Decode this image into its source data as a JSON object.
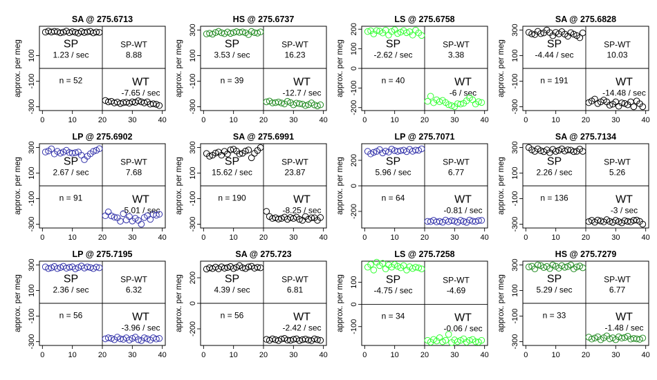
{
  "ylabel": "approx. per meg",
  "x_ticks": [
    0,
    10,
    20,
    30,
    40
  ],
  "chart_data": [
    {
      "type": "scatter",
      "title": "SA @ 275.6713",
      "color": "#000000",
      "ylim": [
        -330,
        330
      ],
      "yticks": [
        -300,
        -100,
        100
      ],
      "sp_rate": "1.23 / sec",
      "diff": "8.88",
      "n": "n = 52",
      "wt_rate": "-7.65 / sec",
      "x": [
        1,
        2,
        3,
        4,
        5,
        6,
        7,
        8,
        9,
        10,
        11,
        12,
        13,
        14,
        15,
        16,
        17,
        18,
        19,
        21,
        22,
        23,
        24,
        25,
        26,
        27,
        28,
        29,
        30,
        31,
        32,
        33,
        34,
        35,
        36,
        37,
        38,
        39
      ],
      "y": [
        284,
        292,
        285,
        290,
        287,
        279,
        284,
        292,
        280,
        288,
        283,
        276,
        289,
        281,
        286,
        290,
        278,
        285,
        282,
        -251,
        -262,
        -258,
        -270,
        -264,
        -275,
        -268,
        -265,
        -272,
        -262,
        -266,
        -254,
        -262,
        -270,
        -262,
        -280,
        -277,
        -281,
        -291
      ]
    },
    {
      "type": "scatter",
      "title": "HS @ 275.6737",
      "color": "#228B22",
      "ylim": [
        -330,
        330
      ],
      "yticks": [
        -300,
        -100,
        100,
        300
      ],
      "sp_rate": "3.53 / sec",
      "diff": "16.23",
      "n": "n = 39",
      "wt_rate": "-12.7 / sec",
      "x": [
        1,
        2,
        3,
        4,
        5,
        6,
        7,
        8,
        9,
        10,
        11,
        12,
        13,
        14,
        15,
        16,
        17,
        18,
        19,
        21,
        22,
        23,
        24,
        25,
        26,
        27,
        28,
        29,
        30,
        31,
        32,
        33,
        34,
        35,
        36,
        37,
        38,
        39
      ],
      "y": [
        270,
        275,
        268,
        281,
        290,
        279,
        272,
        285,
        274,
        281,
        288,
        282,
        286,
        279,
        265,
        289,
        280,
        276,
        286,
        -262,
        -256,
        -270,
        -268,
        -263,
        -271,
        -278,
        -258,
        -268,
        -285,
        -272,
        -276,
        -280,
        -291,
        -284,
        -270,
        -286,
        -294,
        -285
      ]
    },
    {
      "type": "scatter",
      "title": "LS @ 275.6758",
      "color": "#33FF33",
      "ylim": [
        -215,
        215
      ],
      "yticks": [
        -200,
        -100,
        0,
        100,
        200
      ],
      "sp_rate": "-2.62 / sec",
      "diff": "3.38",
      "n": "n = 40",
      "wt_rate": "-6 / sec",
      "x": [
        1,
        2,
        3,
        4,
        5,
        6,
        7,
        8,
        9,
        10,
        11,
        12,
        13,
        14,
        15,
        16,
        17,
        18,
        19,
        21,
        22,
        23,
        24,
        25,
        26,
        27,
        28,
        29,
        30,
        31,
        32,
        33,
        34,
        35,
        36,
        37,
        38,
        39
      ],
      "y": [
        188,
        192,
        176,
        193,
        190,
        181,
        195,
        170,
        188,
        197,
        178,
        185,
        193,
        182,
        187,
        170,
        195,
        181,
        168,
        -168,
        -142,
        -175,
        -160,
        -170,
        -163,
        -174,
        -185,
        -190,
        -195,
        -180,
        -182,
        -178,
        -165,
        -150,
        -160,
        -182,
        -170,
        -174
      ]
    },
    {
      "type": "scatter",
      "title": "SA @ 275.6828",
      "color": "#000000",
      "ylim": [
        -330,
        330
      ],
      "yticks": [
        -300,
        -100,
        100,
        300
      ],
      "sp_rate": "-4.44 / sec",
      "diff": "10.03",
      "n": "n = 191",
      "wt_rate": "-14.48 / sec",
      "x": [
        1,
        2,
        3,
        4,
        5,
        6,
        7,
        8,
        9,
        10,
        11,
        12,
        13,
        14,
        15,
        16,
        17,
        18,
        19,
        21,
        22,
        23,
        24,
        25,
        26,
        27,
        28,
        29,
        30,
        31,
        32,
        33,
        34,
        35,
        36,
        37,
        38,
        39
      ],
      "y": [
        282,
        270,
        265,
        290,
        272,
        278,
        300,
        280,
        256,
        282,
        270,
        288,
        268,
        252,
        280,
        268,
        257,
        240,
        278,
        -268,
        -255,
        -240,
        -275,
        -262,
        -248,
        -262,
        -288,
        -280,
        -262,
        -296,
        -270,
        -275,
        -285,
        -262,
        -300,
        -255,
        -277,
        -300
      ]
    },
    {
      "type": "scatter",
      "title": "LP @ 275.6902",
      "color": "#3333AA",
      "ylim": [
        -330,
        330
      ],
      "yticks": [
        -300,
        -100,
        100,
        300
      ],
      "sp_rate": "2.67 / sec",
      "diff": "7.68",
      "n": "n = 91",
      "wt_rate": "-5.01 / sec",
      "x": [
        1,
        2,
        3,
        4,
        5,
        6,
        7,
        8,
        9,
        10,
        11,
        12,
        13,
        14,
        15,
        16,
        17,
        18,
        19,
        21,
        22,
        23,
        24,
        25,
        26,
        27,
        28,
        29,
        30,
        31,
        32,
        33,
        34,
        35,
        36,
        37,
        38,
        39
      ],
      "y": [
        265,
        273,
        290,
        250,
        270,
        256,
        265,
        278,
        261,
        256,
        260,
        265,
        240,
        205,
        232,
        251,
        270,
        278,
        291,
        -234,
        -204,
        -235,
        -245,
        -250,
        -277,
        -218,
        -267,
        -240,
        -275,
        -254,
        -270,
        -300,
        -248,
        -234,
        -262,
        -224,
        -230,
        -222
      ]
    },
    {
      "type": "scatter",
      "title": "SA @ 275.6991",
      "color": "#000000",
      "ylim": [
        -330,
        330
      ],
      "yticks": [
        -300,
        -100,
        100,
        300
      ],
      "sp_rate": "15.62 / sec",
      "diff": "23.87",
      "n": "n = 190",
      "wt_rate": "-8.25 / sec",
      "x": [
        1,
        2,
        3,
        4,
        5,
        6,
        7,
        8,
        9,
        10,
        11,
        12,
        13,
        14,
        15,
        16,
        17,
        18,
        19,
        21,
        22,
        23,
        24,
        25,
        26,
        27,
        28,
        29,
        30,
        31,
        32,
        33,
        34,
        35,
        36,
        37,
        38,
        39
      ],
      "y": [
        253,
        232,
        240,
        257,
        264,
        240,
        270,
        250,
        282,
        287,
        272,
        250,
        255,
        272,
        281,
        220,
        255,
        277,
        300,
        -200,
        -240,
        -255,
        -250,
        -260,
        -255,
        -245,
        -262,
        -248,
        -255,
        -245,
        -262,
        -270,
        -240,
        -262,
        -250,
        -250,
        -270,
        -248
      ]
    },
    {
      "type": "scatter",
      "title": "LP @ 275.7071",
      "color": "#3333AA",
      "ylim": [
        -330,
        330
      ],
      "yticks": [
        -200,
        0,
        200
      ],
      "sp_rate": "5.96 / sec",
      "diff": "6.77",
      "n": "n = 64",
      "wt_rate": "-0.81 / sec",
      "x": [
        1,
        2,
        3,
        4,
        5,
        6,
        7,
        8,
        9,
        10,
        11,
        12,
        13,
        14,
        15,
        16,
        17,
        18,
        19,
        21,
        22,
        23,
        24,
        25,
        26,
        27,
        28,
        29,
        30,
        31,
        32,
        33,
        34,
        35,
        36,
        37,
        38,
        39
      ],
      "y": [
        270,
        250,
        262,
        270,
        284,
        258,
        272,
        265,
        288,
        276,
        270,
        275,
        280,
        268,
        286,
        271,
        280,
        278,
        290,
        -278,
        -280,
        -270,
        -282,
        -278,
        -285,
        -268,
        -280,
        -272,
        -276,
        -285,
        -270,
        -278,
        -286,
        -268,
        -276,
        -280,
        -272,
        -270
      ]
    },
    {
      "type": "scatter",
      "title": "SA @ 275.7134",
      "color": "#000000",
      "ylim": [
        -330,
        330
      ],
      "yticks": [
        -300,
        -100,
        100,
        300
      ],
      "sp_rate": "2.26 / sec",
      "diff": "5.26",
      "n": "n = 136",
      "wt_rate": "-3 / sec",
      "x": [
        1,
        2,
        3,
        4,
        5,
        6,
        7,
        8,
        9,
        10,
        11,
        12,
        13,
        14,
        15,
        16,
        17,
        18,
        19,
        21,
        22,
        23,
        24,
        25,
        26,
        27,
        28,
        29,
        30,
        31,
        32,
        33,
        34,
        35,
        36,
        37,
        38,
        39
      ],
      "y": [
        300,
        282,
        270,
        290,
        275,
        268,
        282,
        260,
        286,
        270,
        278,
        290,
        272,
        282,
        280,
        268,
        270,
        288,
        270,
        -280,
        -270,
        -285,
        -268,
        -275,
        -282,
        -265,
        -278,
        -286,
        -270,
        -280,
        -290,
        -272,
        -278,
        -282,
        -270,
        -268,
        -278,
        -300
      ]
    },
    {
      "type": "scatter",
      "title": "LP @ 275.7195",
      "color": "#3333AA",
      "ylim": [
        -330,
        330
      ],
      "yticks": [
        -300,
        -100,
        100,
        300
      ],
      "sp_rate": "2.36 / sec",
      "diff": "6.32",
      "n": "n = 56",
      "wt_rate": "-3.96 / sec",
      "x": [
        1,
        2,
        3,
        4,
        5,
        6,
        7,
        8,
        9,
        10,
        11,
        12,
        13,
        14,
        15,
        16,
        17,
        18,
        19,
        21,
        22,
        23,
        24,
        25,
        26,
        27,
        28,
        29,
        30,
        31,
        32,
        33,
        34,
        35,
        36,
        37,
        38,
        39
      ],
      "y": [
        285,
        272,
        278,
        288,
        272,
        280,
        290,
        275,
        282,
        286,
        270,
        280,
        292,
        276,
        285,
        280,
        272,
        284,
        278,
        -278,
        -270,
        -275,
        -285,
        -265,
        -278,
        -282,
        -270,
        -288,
        -275,
        -265,
        -285,
        -292,
        -270,
        -278,
        -288,
        -270,
        -280,
        -275
      ]
    },
    {
      "type": "scatter",
      "title": "SA @ 275.723",
      "color": "#000000",
      "ylim": [
        -330,
        330
      ],
      "yticks": [
        -200,
        0,
        200
      ],
      "sp_rate": "4.39 / sec",
      "diff": "6.81",
      "n": "n = 56",
      "wt_rate": "-2.42 / sec",
      "x": [
        1,
        2,
        3,
        4,
        5,
        6,
        7,
        8,
        9,
        10,
        11,
        12,
        13,
        14,
        15,
        16,
        17,
        18,
        19,
        21,
        22,
        23,
        24,
        25,
        26,
        27,
        28,
        29,
        30,
        31,
        32,
        33,
        34,
        35,
        36,
        37,
        38,
        39
      ],
      "y": [
        268,
        278,
        272,
        284,
        270,
        286,
        275,
        280,
        288,
        272,
        282,
        295,
        278,
        272,
        285,
        290,
        275,
        282,
        278,
        -282,
        -290,
        -278,
        -285,
        -292,
        -280,
        -275,
        -288,
        -290,
        -282,
        -278,
        -292,
        -285,
        -280,
        -288,
        -292,
        -278,
        -285,
        -290
      ]
    },
    {
      "type": "scatter",
      "title": "LS @ 275.7258",
      "color": "#33FF33",
      "ylim": [
        -185,
        195
      ],
      "yticks": [
        -100,
        0,
        100
      ],
      "sp_rate": "-4.75 / sec",
      "diff": "-4.69",
      "n": "n = 34",
      "wt_rate": "-0.06 / sec",
      "x": [
        1,
        2,
        3,
        4,
        5,
        6,
        7,
        8,
        9,
        10,
        11,
        12,
        13,
        14,
        15,
        16,
        17,
        18,
        19,
        21,
        22,
        23,
        24,
        25,
        26,
        27,
        28,
        29,
        30,
        31,
        32,
        33,
        34,
        35,
        36,
        37,
        38,
        39
      ],
      "y": [
        168,
        180,
        155,
        190,
        175,
        185,
        160,
        178,
        168,
        180,
        172,
        165,
        175,
        155,
        170,
        162,
        168,
        165,
        160,
        -162,
        -170,
        -158,
        -165,
        -150,
        -168,
        -162,
        -135,
        -172,
        -160,
        -168,
        -162,
        -155,
        -170,
        -162,
        -158,
        -168,
        -170,
        -162
      ]
    },
    {
      "type": "scatter",
      "title": "HS @ 275.7279",
      "color": "#228B22",
      "ylim": [
        -330,
        330
      ],
      "yticks": [
        -300,
        -100,
        100,
        300
      ],
      "sp_rate": "5.29 / sec",
      "diff": "6.77",
      "n": "n = 33",
      "wt_rate": "-1.48 / sec",
      "x": [
        1,
        2,
        3,
        4,
        5,
        6,
        7,
        8,
        9,
        10,
        11,
        12,
        13,
        14,
        15,
        16,
        17,
        18,
        19,
        21,
        22,
        23,
        24,
        25,
        26,
        27,
        28,
        29,
        30,
        31,
        32,
        33,
        34,
        35,
        36,
        37,
        38,
        39
      ],
      "y": [
        285,
        290,
        270,
        300,
        295,
        280,
        288,
        272,
        300,
        290,
        275,
        295,
        282,
        288,
        300,
        270,
        285,
        292,
        278,
        -265,
        -280,
        -272,
        -262,
        -285,
        -270,
        -255,
        -278,
        -270,
        -285,
        -262,
        -272,
        -268,
        -258,
        -280,
        -275,
        -278,
        -282,
        -272
      ]
    }
  ]
}
